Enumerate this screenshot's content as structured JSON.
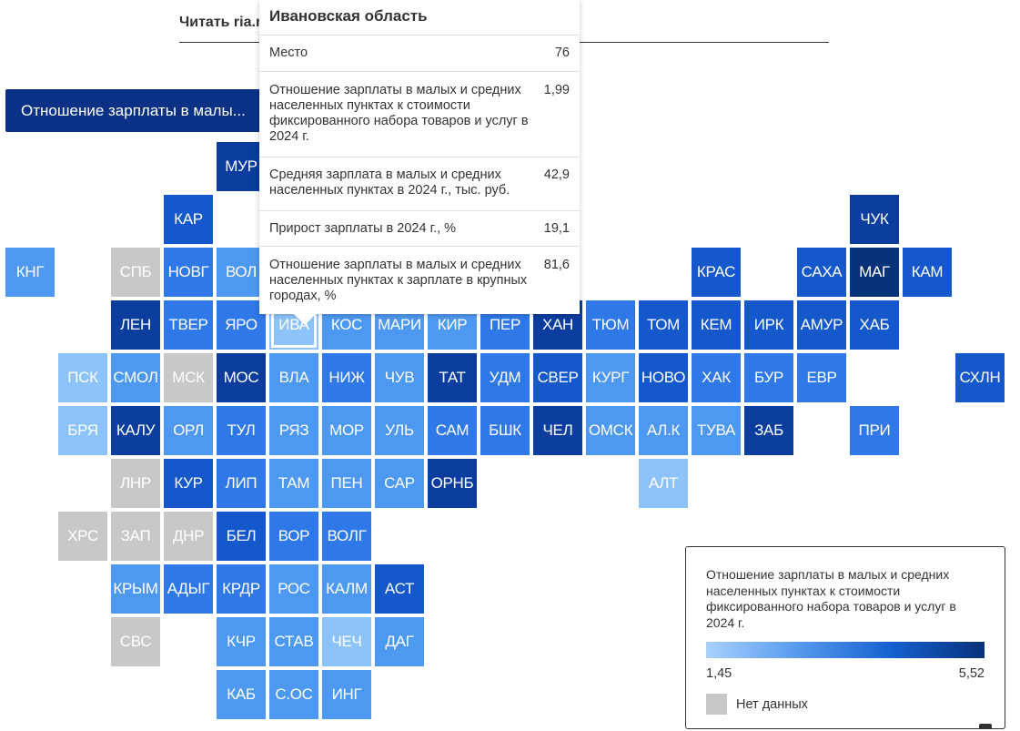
{
  "header": {
    "read_link": "Читать ria.ru"
  },
  "selector": {
    "label": "Отношение зарплаты в малы..."
  },
  "colors": {
    "nodata": "#c8c8c8",
    "selected_border": "#ffffff"
  },
  "map": {
    "tiles": [
      {
        "abbr": "МУР",
        "col": 4,
        "row": 0,
        "shade": 5
      },
      {
        "abbr": "КАР",
        "col": 3,
        "row": 1,
        "shade": 4
      },
      {
        "abbr": "ЧУК",
        "col": 16,
        "row": 1,
        "shade": 5
      },
      {
        "abbr": "КНГ",
        "col": 0,
        "row": 2,
        "shade": 2
      },
      {
        "abbr": "СПБ",
        "col": 2,
        "row": 2,
        "shade": 0
      },
      {
        "abbr": "НОВГ",
        "col": 3,
        "row": 2,
        "shade": 3
      },
      {
        "abbr": "ВОЛ",
        "col": 4,
        "row": 2,
        "shade": 2
      },
      {
        "abbr": "КРАС",
        "col": 13,
        "row": 2,
        "shade": 4
      },
      {
        "abbr": "САХА",
        "col": 15,
        "row": 2,
        "shade": 4
      },
      {
        "abbr": "МАГ",
        "col": 16,
        "row": 2,
        "shade": 6
      },
      {
        "abbr": "КАМ",
        "col": 17,
        "row": 2,
        "shade": 4
      },
      {
        "abbr": "ЛЕН",
        "col": 2,
        "row": 3,
        "shade": 5
      },
      {
        "abbr": "ТВЕР",
        "col": 3,
        "row": 3,
        "shade": 3
      },
      {
        "abbr": "ЯРО",
        "col": 4,
        "row": 3,
        "shade": 3
      },
      {
        "abbr": "ИВА",
        "col": 5,
        "row": 3,
        "shade": 1,
        "selected": true
      },
      {
        "abbr": "КОС",
        "col": 6,
        "row": 3,
        "shade": 2
      },
      {
        "abbr": "МАРИ",
        "col": 7,
        "row": 3,
        "shade": 2
      },
      {
        "abbr": "КИР",
        "col": 8,
        "row": 3,
        "shade": 2
      },
      {
        "abbr": "ПЕР",
        "col": 9,
        "row": 3,
        "shade": 3
      },
      {
        "abbr": "ХАН",
        "col": 10,
        "row": 3,
        "shade": 5
      },
      {
        "abbr": "ТЮМ",
        "col": 11,
        "row": 3,
        "shade": 3
      },
      {
        "abbr": "ТОМ",
        "col": 12,
        "row": 3,
        "shade": 4
      },
      {
        "abbr": "КЕМ",
        "col": 13,
        "row": 3,
        "shade": 4
      },
      {
        "abbr": "ИРК",
        "col": 14,
        "row": 3,
        "shade": 4
      },
      {
        "abbr": "АМУР",
        "col": 15,
        "row": 3,
        "shade": 4
      },
      {
        "abbr": "ХАБ",
        "col": 16,
        "row": 3,
        "shade": 4
      },
      {
        "abbr": "ПСК",
        "col": 1,
        "row": 4,
        "shade": 1
      },
      {
        "abbr": "СМОЛ",
        "col": 2,
        "row": 4,
        "shade": 2
      },
      {
        "abbr": "МСК",
        "col": 3,
        "row": 4,
        "shade": 0
      },
      {
        "abbr": "МОС",
        "col": 4,
        "row": 4,
        "shade": 5
      },
      {
        "abbr": "ВЛА",
        "col": 5,
        "row": 4,
        "shade": 2
      },
      {
        "abbr": "НИЖ",
        "col": 6,
        "row": 4,
        "shade": 3
      },
      {
        "abbr": "ЧУВ",
        "col": 7,
        "row": 4,
        "shade": 2
      },
      {
        "abbr": "ТАТ",
        "col": 8,
        "row": 4,
        "shade": 5
      },
      {
        "abbr": "УДМ",
        "col": 9,
        "row": 4,
        "shade": 3
      },
      {
        "abbr": "СВЕР",
        "col": 10,
        "row": 4,
        "shade": 4
      },
      {
        "abbr": "КУРГ",
        "col": 11,
        "row": 4,
        "shade": 2
      },
      {
        "abbr": "НОВО",
        "col": 12,
        "row": 4,
        "shade": 4
      },
      {
        "abbr": "ХАК",
        "col": 13,
        "row": 4,
        "shade": 3
      },
      {
        "abbr": "БУР",
        "col": 14,
        "row": 4,
        "shade": 3
      },
      {
        "abbr": "ЕВР",
        "col": 15,
        "row": 4,
        "shade": 3
      },
      {
        "abbr": "СХЛН",
        "col": 18,
        "row": 4,
        "shade": 4
      },
      {
        "abbr": "БРЯ",
        "col": 1,
        "row": 5,
        "shade": 1
      },
      {
        "abbr": "КАЛУ",
        "col": 2,
        "row": 5,
        "shade": 5
      },
      {
        "abbr": "ОРЛ",
        "col": 3,
        "row": 5,
        "shade": 2
      },
      {
        "abbr": "ТУЛ",
        "col": 4,
        "row": 5,
        "shade": 3
      },
      {
        "abbr": "РЯЗ",
        "col": 5,
        "row": 5,
        "shade": 2
      },
      {
        "abbr": "МОР",
        "col": 6,
        "row": 5,
        "shade": 2
      },
      {
        "abbr": "УЛЬ",
        "col": 7,
        "row": 5,
        "shade": 2
      },
      {
        "abbr": "САМ",
        "col": 8,
        "row": 5,
        "shade": 3
      },
      {
        "abbr": "БШК",
        "col": 9,
        "row": 5,
        "shade": 3
      },
      {
        "abbr": "ЧЕЛ",
        "col": 10,
        "row": 5,
        "shade": 5
      },
      {
        "abbr": "ОМСК",
        "col": 11,
        "row": 5,
        "shade": 2
      },
      {
        "abbr": "АЛ.К",
        "col": 12,
        "row": 5,
        "shade": 2
      },
      {
        "abbr": "ТУВА",
        "col": 13,
        "row": 5,
        "shade": 2
      },
      {
        "abbr": "ЗАБ",
        "col": 14,
        "row": 5,
        "shade": 5
      },
      {
        "abbr": "ПРИ",
        "col": 16,
        "row": 5,
        "shade": 3
      },
      {
        "abbr": "ЛНР",
        "col": 2,
        "row": 6,
        "shade": 0
      },
      {
        "abbr": "КУР",
        "col": 3,
        "row": 6,
        "shade": 4
      },
      {
        "abbr": "ЛИП",
        "col": 4,
        "row": 6,
        "shade": 3
      },
      {
        "abbr": "ТАМ",
        "col": 5,
        "row": 6,
        "shade": 2
      },
      {
        "abbr": "ПЕН",
        "col": 6,
        "row": 6,
        "shade": 2
      },
      {
        "abbr": "САР",
        "col": 7,
        "row": 6,
        "shade": 2
      },
      {
        "abbr": "ОРНБ",
        "col": 8,
        "row": 6,
        "shade": 5
      },
      {
        "abbr": "АЛТ",
        "col": 12,
        "row": 6,
        "shade": 1
      },
      {
        "abbr": "ХРС",
        "col": 1,
        "row": 7,
        "shade": 0
      },
      {
        "abbr": "ЗАП",
        "col": 2,
        "row": 7,
        "shade": 0
      },
      {
        "abbr": "ДНР",
        "col": 3,
        "row": 7,
        "shade": 0
      },
      {
        "abbr": "БЕЛ",
        "col": 4,
        "row": 7,
        "shade": 4
      },
      {
        "abbr": "ВОР",
        "col": 5,
        "row": 7,
        "shade": 3
      },
      {
        "abbr": "ВОЛГ",
        "col": 6,
        "row": 7,
        "shade": 3
      },
      {
        "abbr": "КРЫМ",
        "col": 2,
        "row": 8,
        "shade": 2
      },
      {
        "abbr": "АДЫГ",
        "col": 3,
        "row": 8,
        "shade": 3
      },
      {
        "abbr": "КРДР",
        "col": 4,
        "row": 8,
        "shade": 3
      },
      {
        "abbr": "РОС",
        "col": 5,
        "row": 8,
        "shade": 2
      },
      {
        "abbr": "КАЛМ",
        "col": 6,
        "row": 8,
        "shade": 2
      },
      {
        "abbr": "АСТ",
        "col": 7,
        "row": 8,
        "shade": 4
      },
      {
        "abbr": "СВС",
        "col": 2,
        "row": 9,
        "shade": 0
      },
      {
        "abbr": "КЧР",
        "col": 4,
        "row": 9,
        "shade": 2
      },
      {
        "abbr": "СТАВ",
        "col": 5,
        "row": 9,
        "shade": 2
      },
      {
        "abbr": "ЧЕЧ",
        "col": 6,
        "row": 9,
        "shade": 1
      },
      {
        "abbr": "ДАГ",
        "col": 7,
        "row": 9,
        "shade": 2
      },
      {
        "abbr": "КАБ",
        "col": 4,
        "row": 10,
        "shade": 2
      },
      {
        "abbr": "С.ОС",
        "col": 5,
        "row": 10,
        "shade": 2
      },
      {
        "abbr": "ИНГ",
        "col": 6,
        "row": 10,
        "shade": 2
      }
    ],
    "shade_colors": [
      "#c8c8c8",
      "#8dc3fb",
      "#4d98f0",
      "#2f78e8",
      "#1558cc",
      "#0a3d9e",
      "#08327a"
    ]
  },
  "tooltip": {
    "region": "Ивановская область",
    "rows": [
      {
        "label": "Место",
        "value": "76"
      },
      {
        "label": "Отношение зарплаты в малых и средних населенных пунктах к стоимости фиксированного набора товаров и услуг в 2024 г.",
        "value": "1,99"
      },
      {
        "label": "Средняя зарплата в малых и средних населенных пунктах в 2024 г., тыс. руб.",
        "value": "42,9"
      },
      {
        "label": "Прирост зарплаты в 2024 г., %",
        "value": "19,1"
      },
      {
        "label": "Отношение зарплаты в малых и средних населенных пунктах к зарплате в крупных городах, %",
        "value": "81,6"
      }
    ]
  },
  "legend": {
    "title": "Отношение зарплаты в малых и средних населенных пунктах к стоимости фиксированного набора товаров и услуг в 2024 г.",
    "min": "1,45",
    "max": "5,52",
    "nodata_label": "Нет данных"
  }
}
